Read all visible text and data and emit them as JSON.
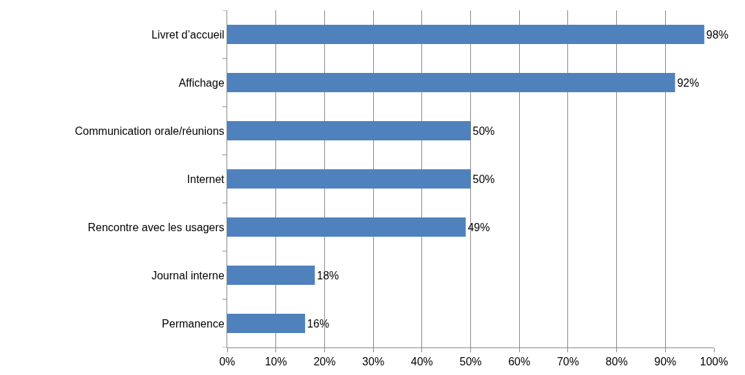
{
  "chart_data": {
    "type": "bar",
    "orientation": "horizontal",
    "categories": [
      "Livret d’accueil",
      "Affichage",
      "Communication orale/réunions",
      "Internet",
      "Rencontre avec les usagers",
      "Journal interne",
      "Permanence"
    ],
    "values": [
      98,
      92,
      50,
      50,
      49,
      18,
      16
    ],
    "value_labels": [
      "98%",
      "92%",
      "50%",
      "50%",
      "49%",
      "18%",
      "16%"
    ],
    "color": "#4f81bd",
    "xlim": [
      0,
      100
    ],
    "xticks": [
      {
        "value": 0,
        "label": "0%"
      },
      {
        "value": 10,
        "label": "10%"
      },
      {
        "value": 20,
        "label": "20%"
      },
      {
        "value": 30,
        "label": "30%"
      },
      {
        "value": 40,
        "label": "40%"
      },
      {
        "value": 50,
        "label": "50%"
      },
      {
        "value": 60,
        "label": "60%"
      },
      {
        "value": 70,
        "label": "70%"
      },
      {
        "value": 80,
        "label": "80%"
      },
      {
        "value": 90,
        "label": "90%"
      },
      {
        "value": 100,
        "label": "100%"
      }
    ],
    "grid": "x"
  }
}
